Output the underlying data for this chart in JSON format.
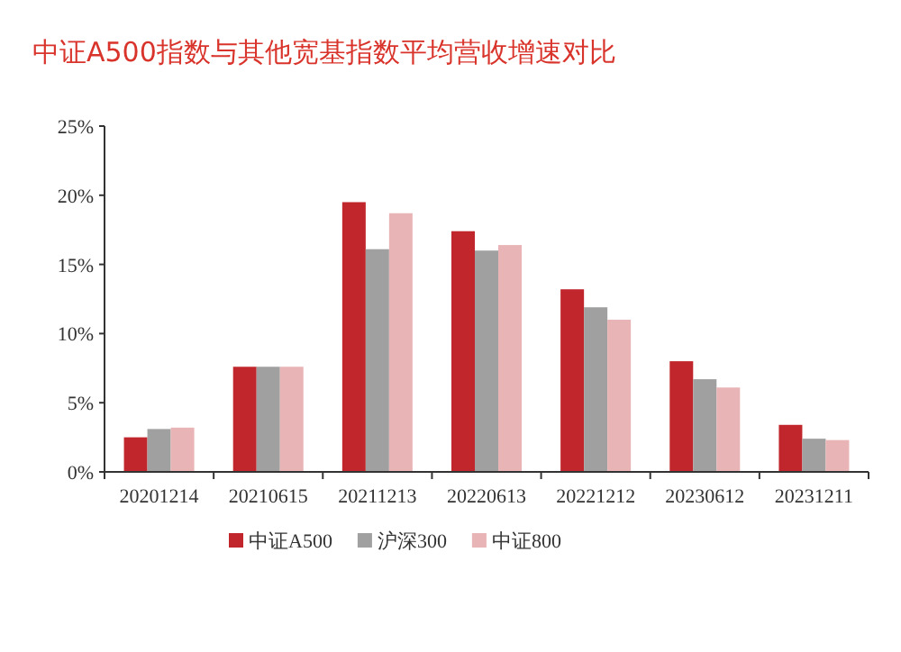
{
  "chart_data": {
    "type": "bar",
    "title": "中证A500指数与其他宽基指数平均营收增速对比",
    "categories": [
      "20201214",
      "20210615",
      "20211213",
      "20220613",
      "20221212",
      "20230612",
      "20231211"
    ],
    "series": [
      {
        "name": "中证A500",
        "color": "#c0262b",
        "values": [
          2.5,
          7.6,
          19.5,
          17.4,
          13.2,
          8.0,
          3.4
        ]
      },
      {
        "name": "沪深300",
        "color": "#a0a0a0",
        "values": [
          3.1,
          7.6,
          16.1,
          16.0,
          11.9,
          6.7,
          2.4
        ]
      },
      {
        "name": "中证800",
        "color": "#e8b4b6",
        "values": [
          3.2,
          7.6,
          18.7,
          16.4,
          11.0,
          6.1,
          2.3
        ]
      }
    ],
    "ylim": [
      0,
      25
    ],
    "yticks": [
      {
        "value": 0,
        "label": "0%"
      },
      {
        "value": 5,
        "label": "5%"
      },
      {
        "value": 10,
        "label": "10%"
      },
      {
        "value": 15,
        "label": "15%"
      },
      {
        "value": 20,
        "label": "20%"
      },
      {
        "value": 25,
        "label": "25%"
      }
    ],
    "grid": false,
    "legend": "bottom"
  }
}
